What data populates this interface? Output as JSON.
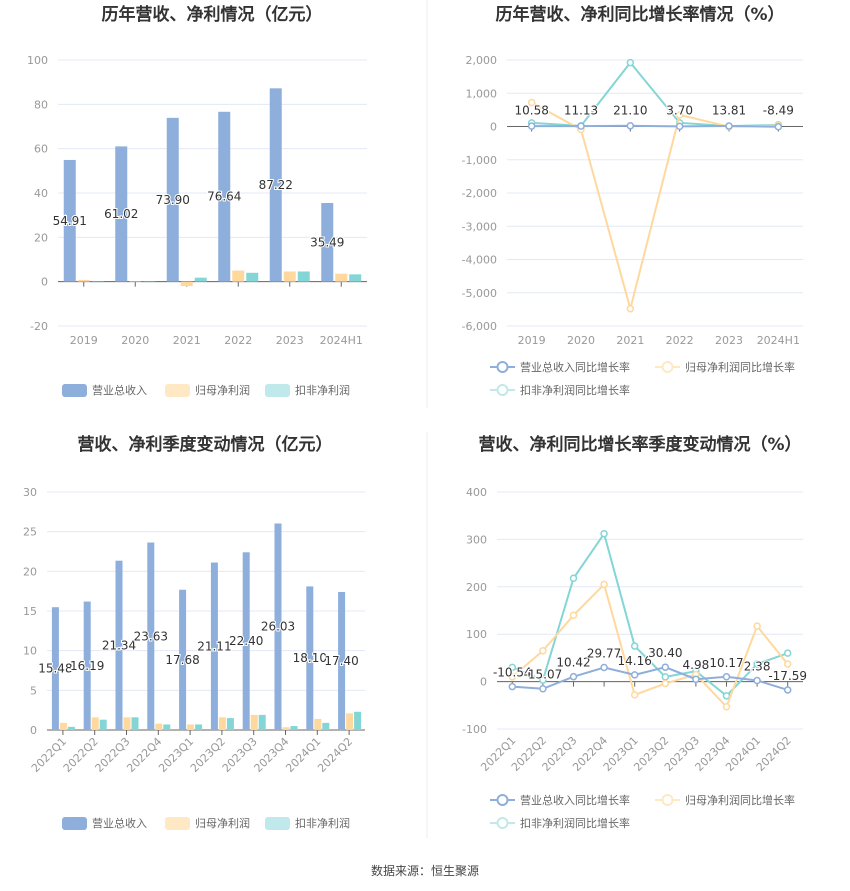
{
  "footer": "数据来源：恒生聚源",
  "colors": {
    "revenue": "#8eaedc",
    "net_profit": "#ffd89e",
    "deducted": "#84d5d6",
    "legend_net_profit": "#ffe8c4",
    "legend_deducted": "#bfe9ea"
  },
  "chart_data": [
    {
      "type": "bar",
      "title": "历年营收、净利情况（亿元）",
      "categories": [
        "2019",
        "2020",
        "2021",
        "2022",
        "2023",
        "2024H1"
      ],
      "ylim": [
        -20,
        100
      ],
      "yticks": [
        "100",
        "80",
        "60",
        "40",
        "20",
        "0",
        "-20"
      ],
      "series": [
        {
          "name": "营业总收入",
          "values": [
            54.91,
            61.02,
            73.9,
            76.64,
            87.22,
            35.49
          ],
          "labels": [
            "54.91",
            "61.02",
            "73.90",
            "76.64",
            "87.22",
            "35.49"
          ]
        },
        {
          "name": "归母净利润",
          "values": [
            0.8,
            0.05,
            -2.0,
            5.0,
            4.6,
            3.6
          ]
        },
        {
          "name": "扣非净利润",
          "values": [
            0.0,
            -0.05,
            1.8,
            4.0,
            4.6,
            3.3
          ]
        }
      ]
    },
    {
      "type": "line",
      "title": "历年营收、净利同比增长率情况（%）",
      "categories": [
        "2019",
        "2020",
        "2021",
        "2022",
        "2023",
        "2024H1"
      ],
      "ylim": [
        -6000,
        2000
      ],
      "yticks": [
        "2,000",
        "1,000",
        "0",
        "-1,000",
        "-2,000",
        "-3,000",
        "-4,000",
        "-5,000",
        "-6,000"
      ],
      "series": [
        {
          "name": "营业总收入同比增长率",
          "values": [
            10.58,
            11.13,
            21.1,
            3.7,
            13.81,
            -8.49
          ],
          "labels": [
            "10.58",
            "11.13",
            "21.10",
            "3.70",
            "13.81",
            "-8.49"
          ]
        },
        {
          "name": "归母净利润同比增长率",
          "values": [
            720,
            -90,
            -5480,
            350,
            -5,
            30
          ]
        },
        {
          "name": "扣非净利润同比增长率",
          "values": [
            110,
            20,
            1920,
            110,
            10,
            50
          ]
        }
      ]
    },
    {
      "type": "bar",
      "title": "营收、净利季度变动情况（亿元）",
      "categories": [
        "2022Q1",
        "2022Q2",
        "2022Q3",
        "2022Q4",
        "2023Q1",
        "2023Q2",
        "2023Q3",
        "2023Q4",
        "2024Q1",
        "2024Q2"
      ],
      "ylim": [
        0,
        30
      ],
      "yticks": [
        "30",
        "25",
        "20",
        "15",
        "10",
        "5",
        "0"
      ],
      "series": [
        {
          "name": "营业总收入",
          "values": [
            15.48,
            16.19,
            21.34,
            23.63,
            17.68,
            21.11,
            22.4,
            26.03,
            18.1,
            17.4
          ],
          "labels": [
            "15.48",
            "16.19",
            "21.34",
            "23.63",
            "17.68",
            "21.11",
            "22.40",
            "26.03",
            "18.10",
            "17.40"
          ]
        },
        {
          "name": "归母净利润",
          "values": [
            0.9,
            1.6,
            1.6,
            0.8,
            0.7,
            1.6,
            1.9,
            0.35,
            1.4,
            2.1
          ]
        },
        {
          "name": "扣非净利润",
          "values": [
            0.4,
            1.3,
            1.6,
            0.7,
            0.7,
            1.5,
            1.9,
            0.5,
            0.9,
            2.3
          ]
        }
      ]
    },
    {
      "type": "line",
      "title": "营收、净利同比增长率季度变动情况（%）",
      "categories": [
        "2022Q1",
        "2022Q2",
        "2022Q3",
        "2022Q4",
        "2023Q1",
        "2023Q2",
        "2023Q3",
        "2023Q4",
        "2024Q1",
        "2024Q2"
      ],
      "ylim": [
        -100,
        400
      ],
      "yticks": [
        "400",
        "300",
        "200",
        "100",
        "0",
        "-100"
      ],
      "series": [
        {
          "name": "营业总收入同比增长率",
          "values": [
            -10.54,
            -15.07,
            10.42,
            29.77,
            14.16,
            30.4,
            4.98,
            10.17,
            2.38,
            -17.59
          ],
          "labels": [
            "-10.54",
            "-15.07",
            "10.42",
            "29.77",
            "14.16",
            "30.40",
            "4.98",
            "10.17",
            "2.38",
            "-17.59"
          ]
        },
        {
          "name": "归母净利润同比增长率",
          "values": [
            10,
            65,
            140,
            205,
            -28,
            -4,
            15,
            -53,
            117,
            37
          ]
        },
        {
          "name": "扣非净利润同比增长率",
          "values": [
            30,
            3,
            218,
            312,
            75,
            10,
            22,
            -30,
            37,
            60
          ]
        }
      ]
    }
  ]
}
